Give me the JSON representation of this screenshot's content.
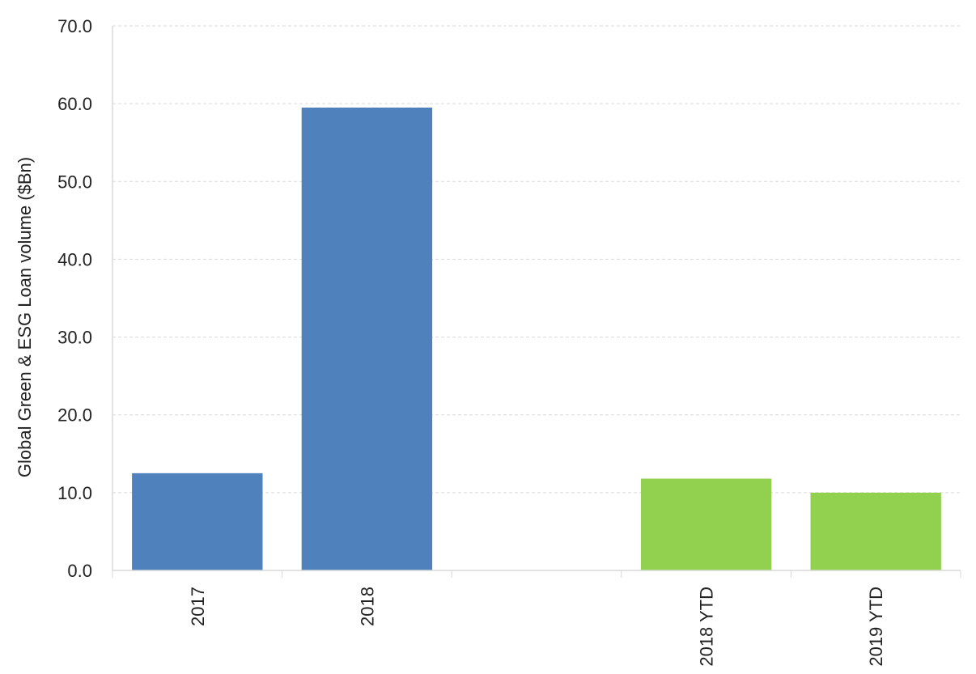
{
  "chart_data": {
    "type": "bar",
    "categories": [
      "2017",
      "2018",
      "",
      "2018 YTD",
      "2019 YTD"
    ],
    "values": [
      12.5,
      59.5,
      null,
      11.8,
      10.0
    ],
    "bar_colors": [
      "#4f81bd",
      "#4f81bd",
      null,
      "#92d050",
      "#92d050"
    ],
    "title": "",
    "xlabel": "",
    "ylabel": "Global Green & ESG Loan volume ($Bn)",
    "ylim": [
      0,
      70
    ],
    "yticks": [
      0,
      10,
      20,
      30,
      40,
      50,
      60,
      70
    ],
    "ytick_labels": [
      "0.0",
      "10.0",
      "20.0",
      "30.0",
      "40.0",
      "50.0",
      "60.0",
      "70.0"
    ],
    "grid": true,
    "legend": "none"
  }
}
